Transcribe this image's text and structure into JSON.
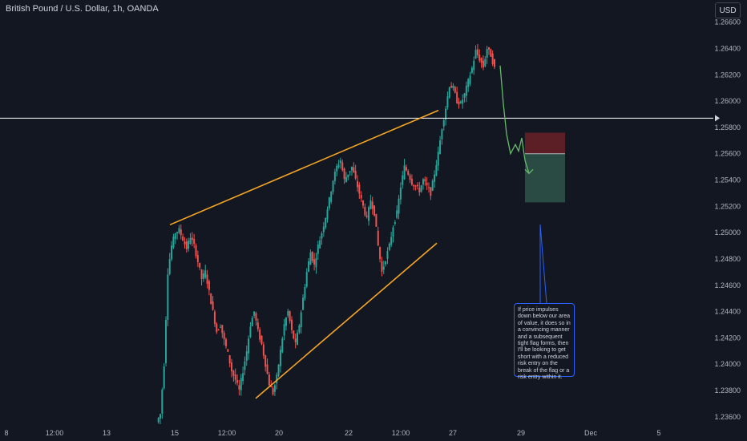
{
  "header": {
    "symbol_title": "British Pound / U.S. Dollar, 1h, OANDA",
    "currency_label": "USD"
  },
  "annotation": {
    "text": "If price impulses down below our area of value, it does so in a convincing manner and a subsequent tight flag forms, then I'll be looking to get short with a reduced risk entry on the break of the flag or a risk entry within it."
  },
  "colors": {
    "background": "#131722",
    "up_candle": "#26a69a",
    "down_candle": "#ef5350",
    "trendline": "#f5a623",
    "level_line": "#ffffff",
    "projection": "#66bb6a",
    "stop_zone": "#5d1f26",
    "target_zone": "#2a4a44",
    "note_border": "#2962ff",
    "axis_text": "#b2b5be"
  },
  "chart_data": {
    "type": "candlestick",
    "title": "British Pound / U.S. Dollar, 1h, OANDA",
    "ylim": [
      1.2355,
      1.2672
    ],
    "y_ticks": [
      "1.26600",
      "1.26400",
      "1.26200",
      "1.26000",
      "1.25800",
      "1.25600",
      "1.25400",
      "1.25200",
      "1.25000",
      "1.24800",
      "1.24600",
      "1.24400",
      "1.24200",
      "1.24000",
      "1.23800",
      "1.23600"
    ],
    "x_ticks": [
      "8",
      "12:00",
      "13",
      "15",
      "12:00",
      "20",
      "22",
      "12:00",
      "27",
      "29",
      "Dec",
      "5"
    ],
    "horizontal_level": 1.2587,
    "trendline_upper": [
      [
        1.2506,
        "start"
      ],
      [
        1.2593,
        "end"
      ]
    ],
    "trendline_lower": [
      [
        1.2374,
        "start"
      ],
      [
        1.2492,
        "end"
      ]
    ],
    "price_path": [
      1.2362,
      1.24,
      1.247,
      1.249,
      1.25,
      1.2502,
      1.2495,
      1.2488,
      1.2497,
      1.249,
      1.2478,
      1.2465,
      1.247,
      1.2455,
      1.244,
      1.2425,
      1.243,
      1.2418,
      1.2408,
      1.2395,
      1.2388,
      1.238,
      1.2395,
      1.241,
      1.243,
      1.244,
      1.2425,
      1.2415,
      1.24,
      1.2385,
      1.2378,
      1.239,
      1.241,
      1.243,
      1.244,
      1.2425,
      1.2415,
      1.243,
      1.245,
      1.247,
      1.2485,
      1.2475,
      1.249,
      1.25,
      1.2512,
      1.2525,
      1.254,
      1.255,
      1.2555,
      1.254,
      1.2545,
      1.255,
      1.254,
      1.253,
      1.252,
      1.251,
      1.2525,
      1.2515,
      1.249,
      1.247,
      1.248,
      1.249,
      1.2505,
      1.2515,
      1.2535,
      1.255,
      1.2545,
      1.2538,
      1.2535,
      1.2532,
      1.254,
      1.2535,
      1.253,
      1.2545,
      1.256,
      1.258,
      1.2595,
      1.2612,
      1.261,
      1.26,
      1.2598,
      1.2605,
      1.2615,
      1.2625,
      1.2638,
      1.2632,
      1.2626,
      1.264,
      1.2635,
      1.2625
    ],
    "projection_path": [
      1.2627,
      1.2598,
      1.2575,
      1.256,
      1.2567,
      1.2562,
      1.2572,
      1.2555,
      1.2545
    ],
    "position": {
      "stop_top": 1.2576,
      "entry": 1.256,
      "target": 1.2523
    }
  }
}
